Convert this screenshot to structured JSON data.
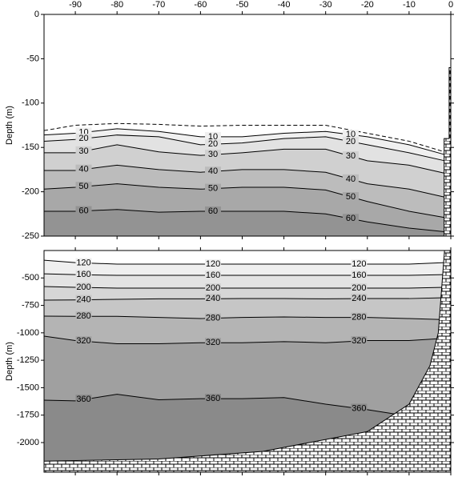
{
  "chart_data": [
    {
      "type": "contour",
      "ylabel": "Depth (m)",
      "xlim": [
        -97.5,
        0
      ],
      "ylim": [
        -250,
        0
      ],
      "xticks": [
        -90,
        -80,
        -70,
        -60,
        -50,
        -40,
        -30,
        -20,
        -10,
        0
      ],
      "yticks": [
        0,
        -50,
        -100,
        -150,
        -200,
        -250
      ],
      "show_xtick_labels": true,
      "contours": [
        {
          "dashed": true,
          "color": "#ffffff",
          "x": [
            -97.5,
            -90,
            -80,
            -70,
            -60,
            -50,
            -40,
            -30,
            -20,
            -10,
            -1.5
          ],
          "y": [
            -131,
            -125,
            -123,
            -124,
            -126,
            -125,
            -125,
            -125,
            -134,
            -143,
            -155
          ]
        },
        {
          "level": 10,
          "color": "#f0f0f0",
          "x": [
            -97.5,
            -90,
            -80,
            -70,
            -60,
            -50,
            -40,
            -30,
            -20,
            -10,
            -1.5
          ],
          "y": [
            -136,
            -134,
            -129,
            -132,
            -138,
            -138,
            -134,
            -132,
            -138,
            -147,
            -158
          ]
        },
        {
          "level": 20,
          "color": "#e2e2e2",
          "x": [
            -97.5,
            -90,
            -80,
            -70,
            -60,
            -50,
            -40,
            -30,
            -20,
            -10,
            -1.5
          ],
          "y": [
            -143,
            -141,
            -136,
            -138,
            -147,
            -145,
            -140,
            -138,
            -147,
            -156,
            -165
          ]
        },
        {
          "level": 30,
          "color": "#d0d0d0",
          "x": [
            -97.5,
            -90,
            -80,
            -70,
            -60,
            -50,
            -40,
            -30,
            -20,
            -10,
            -1.5
          ],
          "y": [
            -156,
            -156,
            -147,
            -155,
            -159,
            -156,
            -152,
            -152,
            -165,
            -170,
            -179
          ]
        },
        {
          "level": 40,
          "color": "#bcbcbc",
          "x": [
            -97.5,
            -90,
            -80,
            -70,
            -60,
            -50,
            -40,
            -30,
            -20,
            -10,
            -1.5
          ],
          "y": [
            -176,
            -176,
            -170,
            -175,
            -178,
            -175,
            -175,
            -178,
            -191,
            -197,
            -206
          ]
        },
        {
          "level": 50,
          "color": "#a8a8a8",
          "x": [
            -97.5,
            -90,
            -80,
            -70,
            -60,
            -50,
            -40,
            -30,
            -20,
            -10,
            -1.5
          ],
          "y": [
            -197,
            -195,
            -191,
            -195,
            -197,
            -195,
            -195,
            -198,
            -211,
            -222,
            -229
          ]
        },
        {
          "level": 60,
          "color": "#939393",
          "x": [
            -97.5,
            -90,
            -80,
            -70,
            -60,
            -50,
            -40,
            -30,
            -20,
            -10,
            -1.5
          ],
          "y": [
            -222,
            -222,
            -220,
            -223,
            -222,
            -222,
            -222,
            -225,
            -234,
            -241,
            -245
          ]
        }
      ],
      "seabed": {
        "x": [
          -1.6,
          -1.6,
          -0.4,
          -0.4,
          0,
          0
        ],
        "y": [
          -250,
          -140,
          -140,
          -60,
          -60,
          -250
        ]
      }
    },
    {
      "type": "contour",
      "ylabel": "Depth (m)",
      "xlim": [
        -97.5,
        0
      ],
      "ylim": [
        -2270,
        -250
      ],
      "xticks": [
        -90,
        -80,
        -70,
        -60,
        -50,
        -40,
        -30,
        -20,
        -10,
        0
      ],
      "yticks": [
        -500,
        -750,
        -1000,
        -1250,
        -1500,
        -1750,
        -2000
      ],
      "show_xtick_labels": false,
      "contours": [
        {
          "level": 120,
          "color": "#efefef",
          "x": [
            -97.5,
            -90,
            -80,
            -70,
            -60,
            -50,
            -40,
            -30,
            -20,
            -10,
            -1.5
          ],
          "y": [
            -338,
            -360,
            -374,
            -374,
            -374,
            -374,
            -374,
            -374,
            -374,
            -374,
            -360
          ]
        },
        {
          "level": 160,
          "color": "#e3e3e3",
          "x": [
            -97.5,
            -90,
            -80,
            -70,
            -60,
            -50,
            -40,
            -30,
            -20,
            -10,
            -1.5
          ],
          "y": [
            -462,
            -470,
            -476,
            -476,
            -476,
            -476,
            -476,
            -476,
            -476,
            -476,
            -470
          ]
        },
        {
          "level": 200,
          "color": "#d6d6d6",
          "x": [
            -97.5,
            -90,
            -80,
            -70,
            -60,
            -50,
            -40,
            -30,
            -20,
            -10,
            -1.5
          ],
          "y": [
            -578,
            -585,
            -593,
            -593,
            -593,
            -593,
            -593,
            -593,
            -593,
            -593,
            -585
          ]
        },
        {
          "level": 240,
          "color": "#c6c6c6",
          "x": [
            -97.5,
            -90,
            -80,
            -70,
            -60,
            -50,
            -40,
            -30,
            -20,
            -10,
            -1.5
          ],
          "y": [
            -702,
            -700,
            -695,
            -690,
            -690,
            -688,
            -688,
            -690,
            -688,
            -688,
            -680
          ]
        },
        {
          "level": 280,
          "color": "#b4b4b4",
          "x": [
            -97.5,
            -90,
            -80,
            -70,
            -60,
            -50,
            -40,
            -30,
            -20,
            -10,
            -1.5
          ],
          "y": [
            -848,
            -850,
            -850,
            -860,
            -870,
            -860,
            -855,
            -860,
            -860,
            -870,
            -880
          ]
        },
        {
          "level": 320,
          "color": "#a0a0a0",
          "x": [
            -97.5,
            -90,
            -80,
            -70,
            -60,
            -50,
            -40,
            -30,
            -20,
            -10,
            -1.5
          ],
          "y": [
            -1030,
            -1070,
            -1100,
            -1100,
            -1090,
            -1090,
            -1080,
            -1090,
            -1070,
            -1070,
            -1050
          ]
        },
        {
          "level": 360,
          "color": "#8a8a8a",
          "x": [
            -97.5,
            -90,
            -80,
            -70,
            -60,
            -50,
            -40,
            -30,
            -20,
            -10,
            -1.5
          ],
          "y": [
            -1614,
            -1620,
            -1560,
            -1610,
            -1600,
            -1600,
            -1590,
            -1650,
            -1700,
            -1760,
            -1800
          ]
        }
      ],
      "seabed": {
        "x": [
          -97.5,
          -70,
          -45,
          -20,
          -10,
          -5,
          -3,
          -1.5,
          0,
          0,
          -97.5
        ],
        "y": [
          -2170,
          -2150,
          -2080,
          -1900,
          -1650,
          -1300,
          -1000,
          -250,
          -250,
          -2270,
          -2270
        ]
      }
    }
  ]
}
